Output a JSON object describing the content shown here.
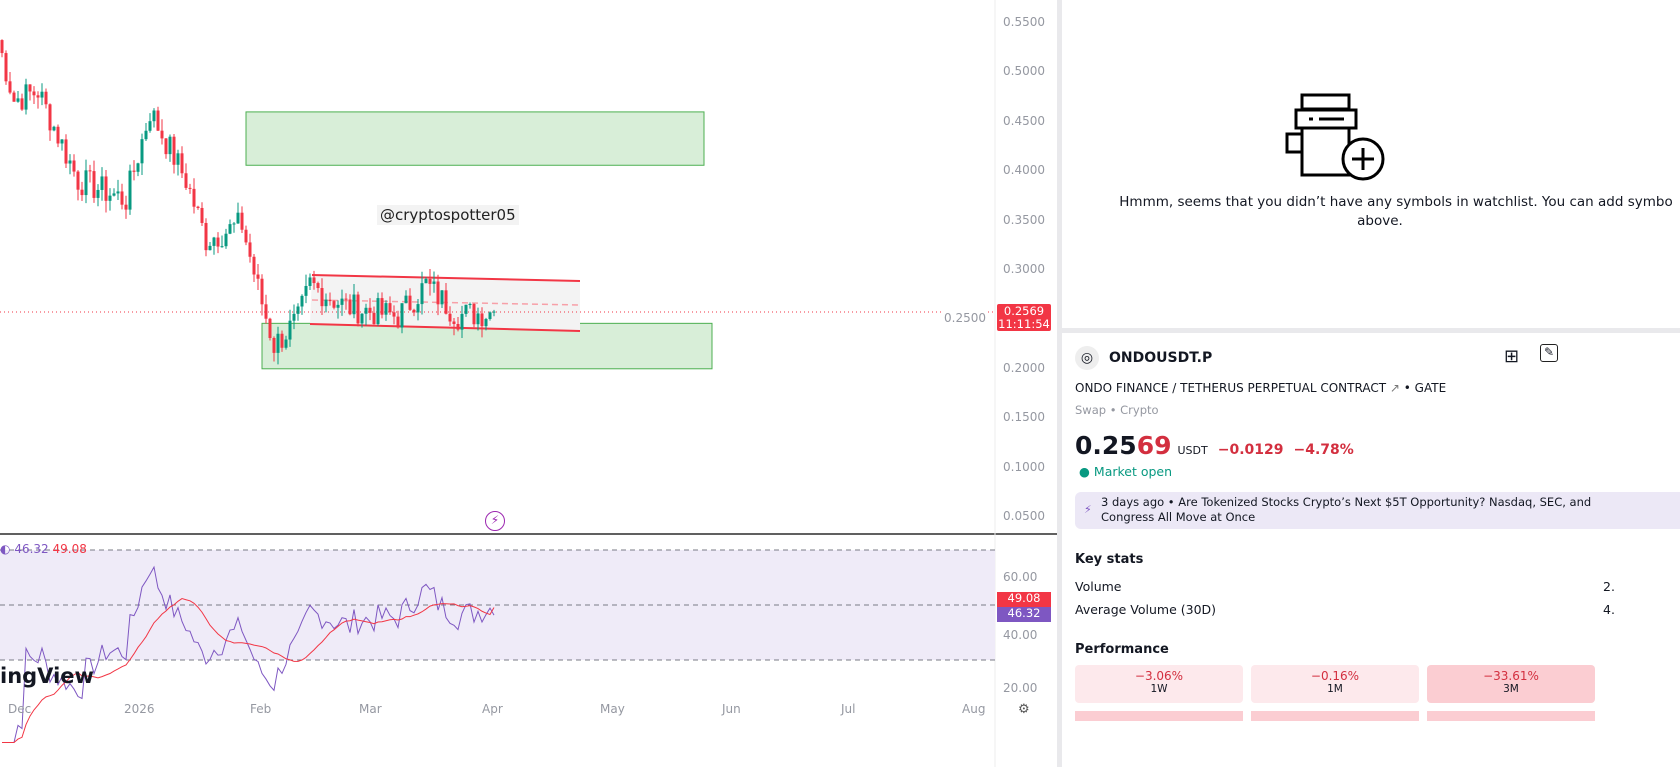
{
  "chart": {
    "watermark": "@cryptospotter05",
    "brand": "ingView",
    "price_axis": [
      "0.5500",
      "0.5000",
      "0.4500",
      "0.4000",
      "0.3500",
      "0.3000",
      "0.2500",
      "0.2000",
      "0.1500",
      "0.1000",
      "0.0500"
    ],
    "last_price": "0.2569",
    "countdown": "11:11:54",
    "time_axis": [
      "Dec",
      "2026",
      "Feb",
      "Mar",
      "Apr",
      "May",
      "Jun",
      "Jul",
      "Aug"
    ],
    "price_anchors": [
      [
        0,
        0.532
      ],
      [
        4,
        0.471
      ],
      [
        10,
        0.48
      ],
      [
        20,
        0.39
      ],
      [
        32,
        0.37
      ],
      [
        38,
        0.46
      ],
      [
        47,
        0.39
      ],
      [
        52,
        0.33
      ],
      [
        61,
        0.345
      ],
      [
        65,
        0.28
      ],
      [
        69,
        0.223
      ],
      [
        75,
        0.248
      ],
      [
        78,
        0.284
      ],
      [
        87,
        0.262
      ],
      [
        100,
        0.252
      ],
      [
        107,
        0.284
      ],
      [
        115,
        0.253
      ],
      [
        124,
        0.2569
      ]
    ],
    "zones": [
      {
        "top": 0.459,
        "bottom": 0.405
      },
      {
        "top": 0.245,
        "bottom": 0.199
      }
    ],
    "up_color": "#089981",
    "down_color": "#f23645"
  },
  "rsi": {
    "value": "46.32",
    "ma": "49.08",
    "axis": [
      "60.00",
      "40.00",
      "20.00"
    ],
    "line_color": "#7e57c2",
    "ma_color": "#f23645"
  },
  "watchlist": {
    "empty_line1": "Hmmm, seems that you didn’t have any symbols in watchlist. You can add symbo",
    "empty_line2": "above."
  },
  "symbol": {
    "ticker": "ONDOUSDT.P",
    "description": "ONDO FINANCE / TETHERUS PERPETUAL CONTRACT",
    "exchange": "GATE",
    "type": "Swap • Crypto",
    "price_main": "0.25",
    "price_tail": "69",
    "currency": "USDT",
    "change": "−0.0129",
    "change_pct": "−4.78%",
    "status": "Market open",
    "news_time": "3 days ago",
    "news_title": "Are Tokenized Stocks Crypto’s Next $5T Opportunity? Nasdaq, SEC, and",
    "news_title2": "Congress All Move at Once"
  },
  "key_stats": {
    "title": "Key stats",
    "rows": [
      {
        "label": "Volume",
        "value": "2."
      },
      {
        "label": "Average Volume (30D)",
        "value": "4."
      }
    ]
  },
  "performance": {
    "title": "Performance",
    "items": [
      {
        "value": "−3.06%",
        "label": "1W"
      },
      {
        "value": "−0.16%",
        "label": "1M"
      },
      {
        "value": "−33.61%",
        "label": "3M"
      }
    ]
  }
}
